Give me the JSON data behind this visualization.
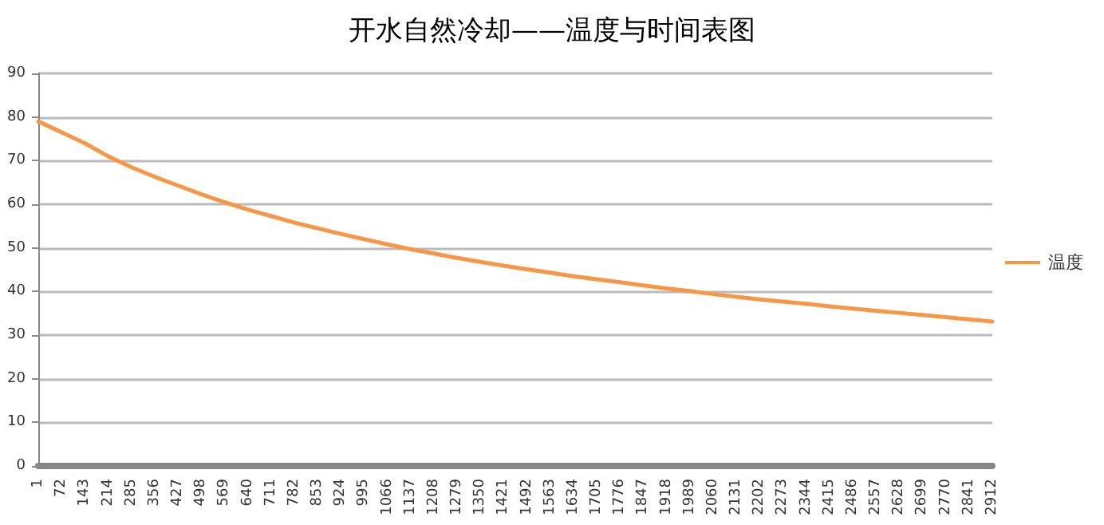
{
  "chart_data": {
    "type": "line",
    "title": "开水自然冷却——温度与时间表图",
    "categories": [
      "1",
      "72",
      "143",
      "214",
      "285",
      "356",
      "427",
      "498",
      "569",
      "640",
      "711",
      "782",
      "853",
      "924",
      "995",
      "1066",
      "1137",
      "1208",
      "1279",
      "1350",
      "1421",
      "1492",
      "1563",
      "1634",
      "1705",
      "1776",
      "1847",
      "1918",
      "1989",
      "2060",
      "2131",
      "2202",
      "2273",
      "2344",
      "2415",
      "2486",
      "2557",
      "2628",
      "2699",
      "2770",
      "2841",
      "2912"
    ],
    "series": [
      {
        "name": "温度",
        "color": "#f79646",
        "values": [
          79,
          76.5,
          74,
          71,
          68.5,
          66.3,
          64.3,
          62.3,
          60.5,
          58.8,
          57.3,
          55.8,
          54.5,
          53.2,
          52,
          50.8,
          49.7,
          48.7,
          47.7,
          46.8,
          45.9,
          45.1,
          44.3,
          43.5,
          42.8,
          42.1,
          41.4,
          40.7,
          40.1,
          39.4,
          38.8,
          38.2,
          37.7,
          37.2,
          36.6,
          36.1,
          35.6,
          35.1,
          34.6,
          34.1,
          33.6,
          33.1
        ]
      }
    ],
    "ylim": [
      0,
      90
    ],
    "yticks": [
      0,
      10,
      20,
      30,
      40,
      50,
      60,
      70,
      80,
      90
    ],
    "grid": "y",
    "legend": "right",
    "marker": "none",
    "line_style": "solid"
  }
}
